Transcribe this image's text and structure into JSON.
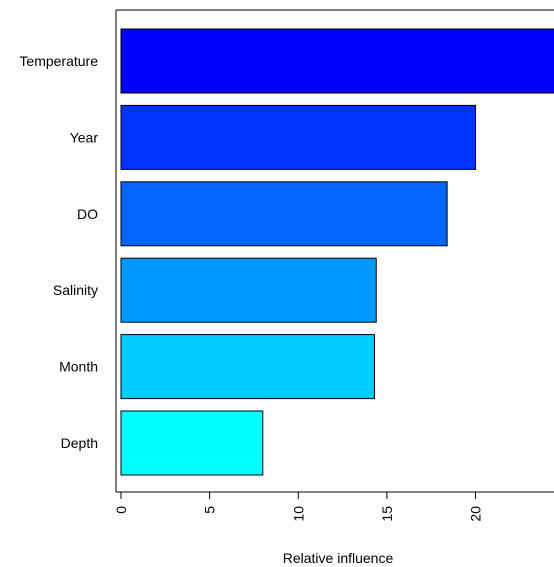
{
  "chart_data": {
    "type": "bar",
    "orientation": "horizontal",
    "categories": [
      "Temperature",
      "Year",
      "DO",
      "Salinity",
      "Month",
      "Depth"
    ],
    "values": [
      24.5,
      20.0,
      18.4,
      14.4,
      14.3,
      8.0
    ],
    "colors": [
      "#0000FF",
      "#0033FF",
      "#0066FF",
      "#0099FF",
      "#00CCFF",
      "#00FFFF"
    ],
    "xticks": [
      0,
      5,
      10,
      15,
      20
    ],
    "xlim": [
      0,
      24.5
    ],
    "xlabel": "Relative influence",
    "ylabel": "",
    "title": "",
    "grid": false
  }
}
